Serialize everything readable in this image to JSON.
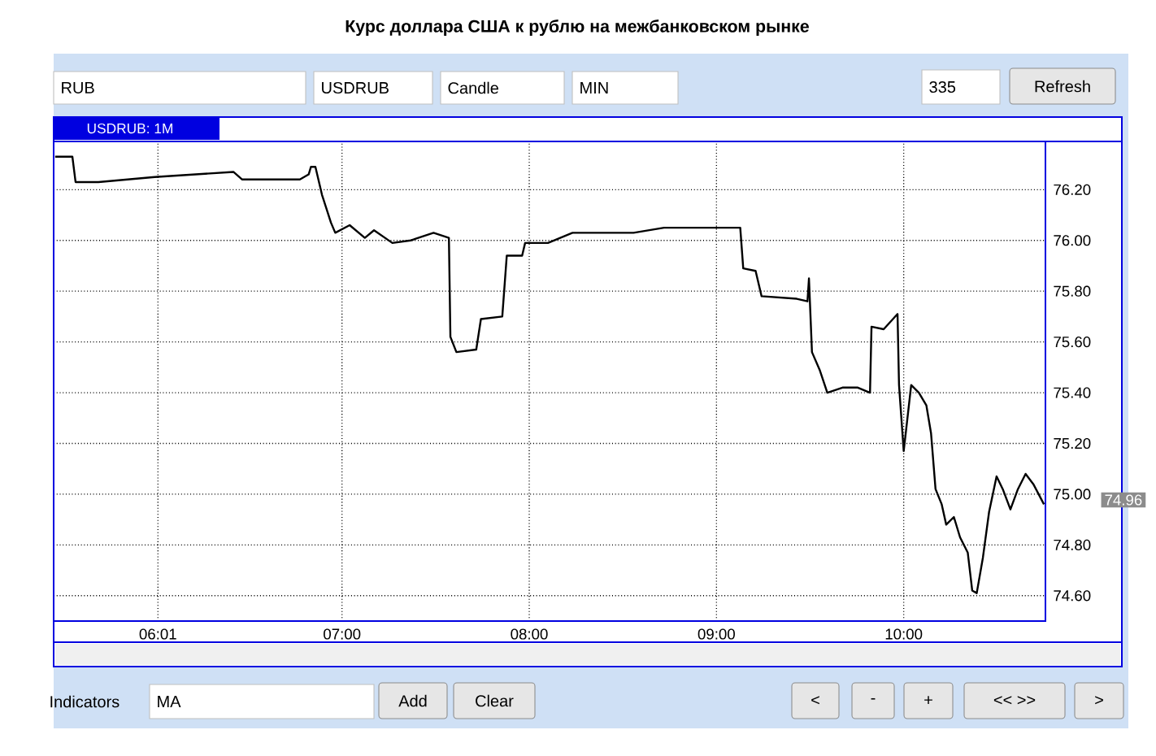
{
  "chart_data": {
    "type": "line",
    "title": "Курс доллара США к рублю на межбанковском рынке",
    "x": [
      5.468,
      5.56,
      5.577,
      5.699,
      6.0,
      6.42,
      6.467,
      6.775,
      6.822,
      6.834,
      6.858,
      6.893,
      6.941,
      6.964,
      7.041,
      7.122,
      7.171,
      7.269,
      7.367,
      7.489,
      7.571,
      7.579,
      7.611,
      7.717,
      7.742,
      7.856,
      7.88,
      7.962,
      7.978,
      8.1,
      8.231,
      8.345,
      8.557,
      8.72,
      8.94,
      9.127,
      9.143,
      9.209,
      9.241,
      9.429,
      9.486,
      9.494,
      9.51,
      9.551,
      9.592,
      9.673,
      9.755,
      9.82,
      9.828,
      9.893,
      9.967,
      9.975,
      10.0,
      10.04,
      10.081,
      10.121,
      10.146,
      10.17,
      10.203,
      10.227,
      10.268,
      10.301,
      10.342,
      10.366,
      10.39,
      10.423,
      10.456,
      10.496,
      10.529,
      10.57,
      10.61,
      10.651,
      10.692,
      10.749
    ],
    "series": [
      {
        "color": "#000000",
        "values": [
          76.33,
          76.33,
          76.23,
          76.23,
          76.25,
          76.27,
          76.24,
          76.24,
          76.26,
          76.29,
          76.29,
          76.18,
          76.07,
          76.03,
          76.06,
          76.01,
          76.04,
          75.99,
          76.0,
          76.03,
          76.01,
          75.62,
          75.56,
          75.57,
          75.69,
          75.7,
          75.94,
          75.94,
          75.99,
          75.99,
          76.03,
          76.03,
          76.03,
          76.05,
          76.05,
          76.05,
          75.89,
          75.88,
          75.78,
          75.77,
          75.76,
          75.85,
          75.56,
          75.49,
          75.4,
          75.42,
          75.42,
          75.4,
          75.66,
          75.65,
          75.71,
          75.43,
          75.17,
          75.43,
          75.4,
          75.35,
          75.24,
          75.02,
          74.96,
          74.88,
          74.91,
          74.83,
          74.77,
          74.62,
          74.61,
          74.75,
          74.93,
          75.07,
          75.02,
          74.94,
          75.02,
          75.08,
          75.04,
          74.96
        ]
      }
    ],
    "xlim": [
      5.46,
      10.757
    ],
    "ylim": [
      74.5,
      76.39
    ],
    "xticks": [
      {
        "value": 6.017,
        "label": "06:01"
      },
      {
        "value": 7,
        "label": "07:00"
      },
      {
        "value": 8,
        "label": "08:00"
      },
      {
        "value": 9,
        "label": "09:00"
      },
      {
        "value": 10,
        "label": "10:00"
      }
    ],
    "yticks": [
      {
        "value": 74.6,
        "label": "74.60"
      },
      {
        "value": 74.8,
        "label": "74.80"
      },
      {
        "value": 75.0,
        "label": "75.00"
      },
      {
        "value": 75.2,
        "label": "75.20"
      },
      {
        "value": 75.4,
        "label": "75.40"
      },
      {
        "value": 75.6,
        "label": "75.60"
      },
      {
        "value": 75.8,
        "label": "75.80"
      },
      {
        "value": 76.0,
        "label": "76.00"
      },
      {
        "value": 76.2,
        "label": "76.20"
      }
    ],
    "grid": true,
    "line_style": "solid",
    "annotations": [
      "USDRUB: 1M",
      "RUB",
      "USDRUB",
      "Candle",
      "MIN",
      "335",
      "Refresh",
      "Indicators",
      "MA",
      "Add",
      "Clear",
      "<",
      "-",
      "+",
      "<< >>",
      ">",
      "74.96"
    ]
  }
}
